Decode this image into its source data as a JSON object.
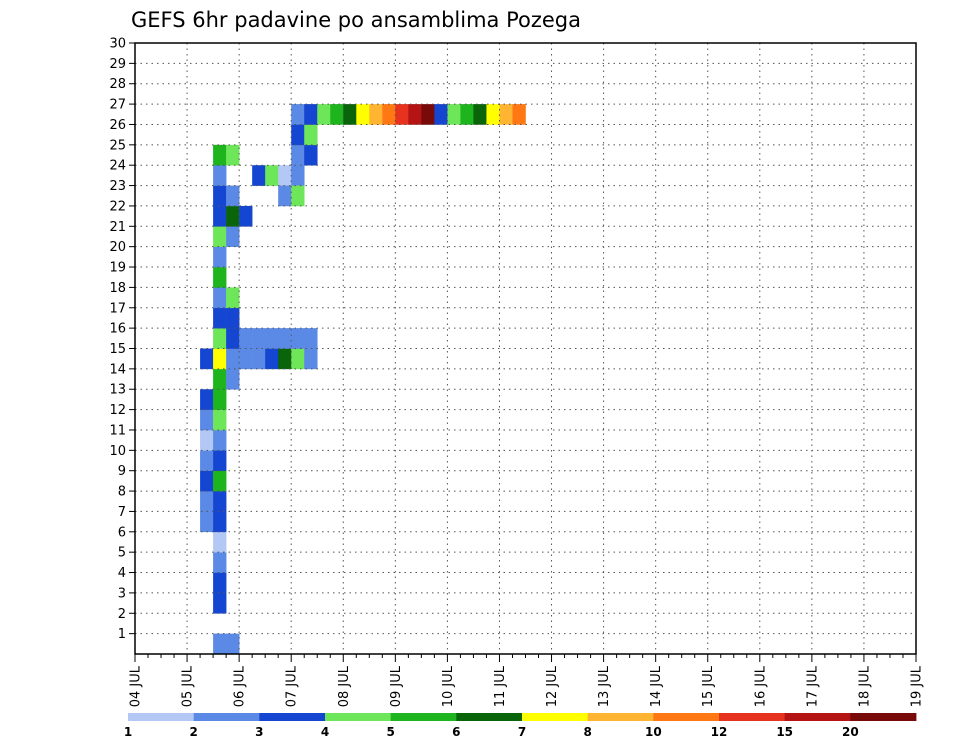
{
  "chart_data": {
    "type": "heatmap",
    "title": "GEFS 6hr padavine po ansamblima Pozega",
    "xlabel": "",
    "ylabel": "",
    "x_tick_labels": [
      "04 JUL",
      "05 JUL",
      "06 JUL",
      "07 JUL",
      "08 JUL",
      "09 JUL",
      "10 JUL",
      "11 JUL",
      "12 JUL",
      "13 JUL",
      "14 JUL",
      "15 JUL",
      "16 JUL",
      "17 JUL",
      "18 JUL",
      "19 JUL"
    ],
    "x_range_steps": [
      0,
      60
    ],
    "y_tick_labels": [
      "1",
      "2",
      "3",
      "4",
      "5",
      "6",
      "7",
      "8",
      "9",
      "10",
      "11",
      "12",
      "13",
      "14",
      "15",
      "16",
      "17",
      "18",
      "19",
      "20",
      "21",
      "22",
      "23",
      "24",
      "25",
      "26",
      "27",
      "28",
      "29",
      "30"
    ],
    "y_range_members": [
      0,
      30
    ],
    "grid": true,
    "colorbar": {
      "placement": "bottom",
      "levels": [
        "1",
        "2",
        "3",
        "4",
        "5",
        "6",
        "7",
        "8",
        "10",
        "12",
        "15",
        "20"
      ],
      "colors": [
        "#b4c8f5",
        "#5a8ae6",
        "#1446d2",
        "#6ee65a",
        "#1eb41e",
        "#0a640a",
        "#ffff00",
        "#ffb432",
        "#ff7814",
        "#e6321e",
        "#b41414",
        "#780a0a"
      ]
    },
    "cells": [
      [
        6,
        0,
        1
      ],
      [
        6,
        2,
        2
      ],
      [
        6,
        3,
        2
      ],
      [
        7,
        0,
        1
      ],
      [
        6,
        4,
        1
      ],
      [
        6,
        5,
        0
      ],
      [
        5,
        6,
        1
      ],
      [
        6,
        6,
        2
      ],
      [
        5,
        7,
        1
      ],
      [
        6,
        7,
        2
      ],
      [
        5,
        8,
        2
      ],
      [
        6,
        8,
        4
      ],
      [
        5,
        9,
        1
      ],
      [
        6,
        9,
        2
      ],
      [
        5,
        10,
        0
      ],
      [
        6,
        10,
        1
      ],
      [
        5,
        11,
        1
      ],
      [
        6,
        11,
        3
      ],
      [
        5,
        12,
        2
      ],
      [
        6,
        12,
        4
      ],
      [
        6,
        13,
        4
      ],
      [
        7,
        13,
        1
      ],
      [
        5,
        14,
        2
      ],
      [
        6,
        14,
        6
      ],
      [
        7,
        14,
        1
      ],
      [
        8,
        14,
        1
      ],
      [
        9,
        14,
        1
      ],
      [
        10,
        14,
        2
      ],
      [
        11,
        14,
        5
      ],
      [
        12,
        14,
        3
      ],
      [
        13,
        14,
        1
      ],
      [
        6,
        15,
        3
      ],
      [
        7,
        15,
        2
      ],
      [
        8,
        15,
        1
      ],
      [
        9,
        15,
        1
      ],
      [
        10,
        15,
        1
      ],
      [
        11,
        15,
        1
      ],
      [
        12,
        15,
        1
      ],
      [
        13,
        15,
        1
      ],
      [
        6,
        16,
        2
      ],
      [
        7,
        16,
        2
      ],
      [
        6,
        17,
        1
      ],
      [
        7,
        17,
        3
      ],
      [
        6,
        18,
        4
      ],
      [
        6,
        19,
        1
      ],
      [
        6,
        20,
        3
      ],
      [
        7,
        20,
        1
      ],
      [
        6,
        21,
        2
      ],
      [
        7,
        21,
        5
      ],
      [
        8,
        21,
        2
      ],
      [
        6,
        22,
        2
      ],
      [
        7,
        22,
        1
      ],
      [
        6,
        23,
        1
      ],
      [
        6,
        24,
        4
      ],
      [
        7,
        24,
        3
      ],
      [
        9,
        23,
        2
      ],
      [
        10,
        23,
        3
      ],
      [
        11,
        23,
        0
      ],
      [
        12,
        23,
        1
      ],
      [
        11,
        22,
        1
      ],
      [
        12,
        22,
        3
      ],
      [
        12,
        24,
        1
      ],
      [
        13,
        24,
        2
      ],
      [
        12,
        25,
        2
      ],
      [
        13,
        25,
        3
      ],
      [
        12,
        26,
        1
      ],
      [
        13,
        26,
        2
      ],
      [
        14,
        26,
        3
      ],
      [
        15,
        26,
        4
      ],
      [
        16,
        26,
        5
      ],
      [
        17,
        26,
        6
      ],
      [
        18,
        26,
        7
      ],
      [
        19,
        26,
        8
      ],
      [
        20,
        26,
        9
      ],
      [
        21,
        26,
        10
      ],
      [
        22,
        26,
        11
      ],
      [
        23,
        26,
        2
      ],
      [
        24,
        26,
        3
      ],
      [
        25,
        26,
        4
      ],
      [
        26,
        26,
        5
      ],
      [
        27,
        26,
        6
      ],
      [
        28,
        26,
        7
      ],
      [
        29,
        26,
        8
      ]
    ]
  }
}
